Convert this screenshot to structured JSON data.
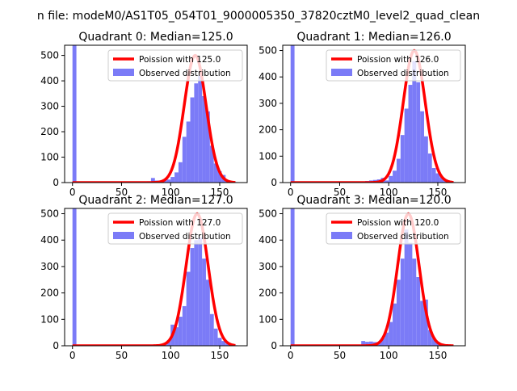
{
  "suptitle": "n file: modeM0/AS1T05_054T01_9000005350_37820cztM0_level2_quad_clean",
  "colors": {
    "fit": "#ff0000",
    "observed": "#7b7bf7"
  },
  "chart_data": [
    {
      "type": "bar",
      "title": "Quadrant 0: Median=125.0",
      "xlabel": "",
      "ylabel": "",
      "xlim": [
        -8,
        178
      ],
      "ylim": [
        0,
        540
      ],
      "xticks": [
        0,
        50,
        100,
        150
      ],
      "yticks": [
        0,
        100,
        200,
        300,
        400,
        500
      ],
      "legend": {
        "placement": "top-right",
        "fit_label": "Poission with 125.0",
        "observed_label": "Observed distribution"
      },
      "bin_width": 4,
      "series": [
        {
          "name": "Observed distribution",
          "kind": "histogram",
          "bins": [
            [
              0,
              540
            ],
            [
              4,
              2
            ],
            [
              8,
              2
            ],
            [
              12,
              2
            ],
            [
              16,
              2
            ],
            [
              20,
              2
            ],
            [
              24,
              2
            ],
            [
              28,
              2
            ],
            [
              32,
              2
            ],
            [
              36,
              2
            ],
            [
              40,
              2
            ],
            [
              44,
              2
            ],
            [
              48,
              2
            ],
            [
              52,
              2
            ],
            [
              56,
              2
            ],
            [
              60,
              2
            ],
            [
              64,
              2
            ],
            [
              68,
              2
            ],
            [
              72,
              2
            ],
            [
              76,
              5
            ],
            [
              80,
              18
            ],
            [
              84,
              8
            ],
            [
              88,
              6
            ],
            [
              92,
              8
            ],
            [
              96,
              12
            ],
            [
              100,
              22
            ],
            [
              104,
              40
            ],
            [
              108,
              80
            ],
            [
              112,
              180
            ],
            [
              116,
              240
            ],
            [
              120,
              335
            ],
            [
              124,
              390
            ],
            [
              128,
              420
            ],
            [
              132,
              340
            ],
            [
              136,
              280
            ],
            [
              140,
              145
            ],
            [
              144,
              75
            ],
            [
              148,
              45
            ],
            [
              152,
              30
            ],
            [
              156,
              8
            ],
            [
              160,
              4
            ],
            [
              164,
              2
            ]
          ]
        },
        {
          "name": "Poission with 125.0",
          "kind": "line",
          "mu": 125.0,
          "peak": 500,
          "x_range": [
            0,
            166
          ]
        }
      ]
    },
    {
      "type": "bar",
      "title": "Quadrant 1: Median=126.0",
      "xlabel": "",
      "ylabel": "",
      "xlim": [
        -8,
        178
      ],
      "ylim": [
        0,
        520
      ],
      "xticks": [
        0,
        50,
        100,
        150
      ],
      "yticks": [
        0,
        100,
        200,
        300,
        400,
        500
      ],
      "legend": {
        "placement": "top-right",
        "fit_label": "Poission with 126.0",
        "observed_label": "Observed distribution"
      },
      "bin_width": 4,
      "series": [
        {
          "name": "Observed distribution",
          "kind": "histogram",
          "bins": [
            [
              0,
              520
            ],
            [
              4,
              2
            ],
            [
              8,
              2
            ],
            [
              12,
              2
            ],
            [
              16,
              2
            ],
            [
              20,
              2
            ],
            [
              24,
              2
            ],
            [
              28,
              2
            ],
            [
              32,
              2
            ],
            [
              36,
              2
            ],
            [
              40,
              2
            ],
            [
              44,
              2
            ],
            [
              48,
              2
            ],
            [
              52,
              2
            ],
            [
              56,
              2
            ],
            [
              60,
              2
            ],
            [
              64,
              2
            ],
            [
              68,
              2
            ],
            [
              72,
              4
            ],
            [
              76,
              6
            ],
            [
              80,
              8
            ],
            [
              84,
              10
            ],
            [
              88,
              12
            ],
            [
              92,
              18
            ],
            [
              96,
              8
            ],
            [
              100,
              25
            ],
            [
              104,
              45
            ],
            [
              108,
              90
            ],
            [
              112,
              180
            ],
            [
              116,
              280
            ],
            [
              120,
              370
            ],
            [
              124,
              460
            ],
            [
              128,
              380
            ],
            [
              132,
              270
            ],
            [
              136,
              175
            ],
            [
              140,
              110
            ],
            [
              144,
              55
            ],
            [
              148,
              35
            ],
            [
              152,
              20
            ],
            [
              156,
              12
            ],
            [
              160,
              5
            ],
            [
              164,
              2
            ]
          ]
        },
        {
          "name": "Poission with 126.0",
          "kind": "line",
          "mu": 126.0,
          "peak": 500,
          "x_range": [
            0,
            166
          ]
        }
      ]
    },
    {
      "type": "bar",
      "title": "Quadrant 2: Median=127.0",
      "xlabel": "",
      "ylabel": "",
      "xlim": [
        -8,
        178
      ],
      "ylim": [
        0,
        520
      ],
      "xticks": [
        0,
        50,
        100,
        150
      ],
      "yticks": [
        0,
        100,
        200,
        300,
        400,
        500
      ],
      "legend": {
        "placement": "top-right",
        "fit_label": "Poission with 127.0",
        "observed_label": "Observed distribution"
      },
      "bin_width": 4,
      "series": [
        {
          "name": "Observed distribution",
          "kind": "histogram",
          "bins": [
            [
              0,
              520
            ],
            [
              4,
              2
            ],
            [
              8,
              2
            ],
            [
              12,
              2
            ],
            [
              16,
              2
            ],
            [
              20,
              2
            ],
            [
              24,
              2
            ],
            [
              28,
              2
            ],
            [
              32,
              2
            ],
            [
              36,
              2
            ],
            [
              40,
              2
            ],
            [
              44,
              2
            ],
            [
              48,
              2
            ],
            [
              52,
              2
            ],
            [
              56,
              2
            ],
            [
              60,
              2
            ],
            [
              64,
              2
            ],
            [
              68,
              2
            ],
            [
              72,
              3
            ],
            [
              76,
              3
            ],
            [
              80,
              4
            ],
            [
              84,
              4
            ],
            [
              88,
              6
            ],
            [
              92,
              10
            ],
            [
              96,
              20
            ],
            [
              100,
              80
            ],
            [
              104,
              70
            ],
            [
              108,
              110
            ],
            [
              112,
              150
            ],
            [
              116,
              280
            ],
            [
              120,
              370
            ],
            [
              124,
              400
            ],
            [
              128,
              410
            ],
            [
              132,
              330
            ],
            [
              136,
              250
            ],
            [
              140,
              120
            ],
            [
              144,
              65
            ],
            [
              148,
              30
            ],
            [
              152,
              18
            ],
            [
              156,
              8
            ],
            [
              160,
              4
            ],
            [
              164,
              2
            ]
          ]
        },
        {
          "name": "Poission with 127.0",
          "kind": "line",
          "mu": 127.0,
          "peak": 500,
          "x_range": [
            0,
            166
          ]
        }
      ]
    },
    {
      "type": "bar",
      "title": "Quadrant 3: Median=120.0",
      "xlabel": "",
      "ylabel": "",
      "xlim": [
        -8,
        178
      ],
      "ylim": [
        0,
        520
      ],
      "xticks": [
        0,
        50,
        100,
        150
      ],
      "yticks": [
        0,
        100,
        200,
        300,
        400,
        500
      ],
      "legend": {
        "placement": "top-right",
        "fit_label": "Poission with 120.0",
        "observed_label": "Observed distribution"
      },
      "bin_width": 4,
      "series": [
        {
          "name": "Observed distribution",
          "kind": "histogram",
          "bins": [
            [
              0,
              520
            ],
            [
              4,
              2
            ],
            [
              8,
              2
            ],
            [
              12,
              2
            ],
            [
              16,
              2
            ],
            [
              20,
              2
            ],
            [
              24,
              2
            ],
            [
              28,
              2
            ],
            [
              32,
              2
            ],
            [
              36,
              2
            ],
            [
              40,
              2
            ],
            [
              44,
              2
            ],
            [
              48,
              2
            ],
            [
              52,
              2
            ],
            [
              56,
              2
            ],
            [
              60,
              2
            ],
            [
              64,
              2
            ],
            [
              68,
              2
            ],
            [
              72,
              18
            ],
            [
              76,
              15
            ],
            [
              80,
              16
            ],
            [
              84,
              14
            ],
            [
              88,
              10
            ],
            [
              92,
              30
            ],
            [
              96,
              50
            ],
            [
              100,
              90
            ],
            [
              104,
              160
            ],
            [
              108,
              250
            ],
            [
              112,
              330
            ],
            [
              116,
              440
            ],
            [
              120,
              390
            ],
            [
              124,
              330
            ],
            [
              128,
              260
            ],
            [
              132,
              170
            ],
            [
              136,
              175
            ],
            [
              140,
              60
            ],
            [
              144,
              30
            ],
            [
              148,
              15
            ],
            [
              152,
              8
            ],
            [
              156,
              4
            ],
            [
              160,
              2
            ]
          ]
        },
        {
          "name": "Poission with 120.0",
          "kind": "line",
          "mu": 120.0,
          "peak": 500,
          "x_range": [
            0,
            166
          ]
        }
      ]
    }
  ]
}
